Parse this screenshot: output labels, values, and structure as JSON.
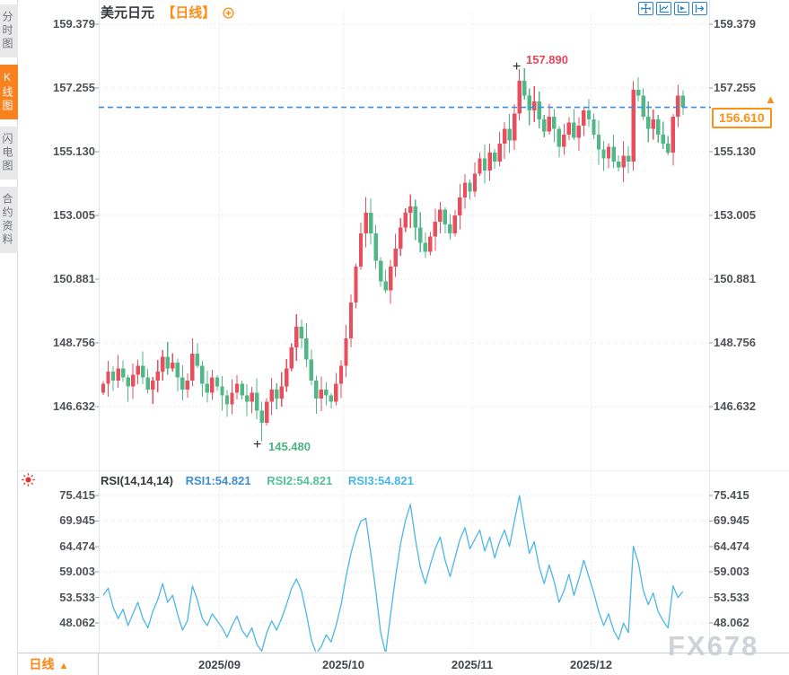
{
  "header": {
    "symbol": "美元日元",
    "period_tag": "【日线】"
  },
  "sidebar": {
    "items": [
      {
        "label": "分时图",
        "active": false
      },
      {
        "label": "K线图",
        "active": true
      },
      {
        "label": "闪电图",
        "active": false
      },
      {
        "label": "合约资料",
        "active": false
      }
    ]
  },
  "toolbar": {
    "icons": [
      {
        "name": "crosshair-icon"
      },
      {
        "name": "axis-line-chart-icon"
      },
      {
        "name": "axis-play-icon"
      },
      {
        "name": "pan-right-icon"
      }
    ]
  },
  "rsi_header": {
    "title": "RSI(14,14,14)",
    "series": [
      {
        "label": "RSI1:54.821",
        "color": "#3e8ed0"
      },
      {
        "label": "RSI2:54.821",
        "color": "#53c198"
      },
      {
        "label": "RSI3:54.821",
        "color": "#46b7e5"
      }
    ]
  },
  "bottom_bar": {
    "period_label": "日线",
    "arrow": "▲"
  },
  "watermark": "FX678",
  "colors": {
    "accent_orange": "#ff8c12",
    "up_red": "#ea4e5c",
    "down_green": "#50b787",
    "last_price_line": "#3b8de0",
    "rsi_line": "#4cb6e6",
    "grid": "#dcdcdc",
    "sidebar_active_bg": "#f8821d"
  },
  "chart_data": [
    {
      "type": "candlestick",
      "title": "美元日元【日线】",
      "period": "日线",
      "up_color": "#ea4e5c",
      "down_color": "#50b787",
      "y_ticks": [
        "159.379",
        "157.255",
        "155.130",
        "153.005",
        "150.881",
        "148.756",
        "146.632"
      ],
      "ylim": [
        145.3,
        159.8
      ],
      "x_ticks": [
        {
          "label": "2025/09",
          "index": 24
        },
        {
          "label": "2025/10",
          "index": 49
        },
        {
          "label": "2025/11",
          "index": 75
        },
        {
          "label": "2025/12",
          "index": 99
        }
      ],
      "first_open": 147.1,
      "closes": [
        147.4,
        147.8,
        147.5,
        147.9,
        147.6,
        147.3,
        147.7,
        148.0,
        147.6,
        147.2,
        147.5,
        147.8,
        148.3,
        147.9,
        148.1,
        147.6,
        147.2,
        147.5,
        148.4,
        148.0,
        147.4,
        147.1,
        147.6,
        147.3,
        147.0,
        146.7,
        147.1,
        147.4,
        147.0,
        146.8,
        147.1,
        146.5,
        146.1,
        146.8,
        147.2,
        146.9,
        147.3,
        147.9,
        148.6,
        149.3,
        148.9,
        148.2,
        147.5,
        146.9,
        147.2,
        147.0,
        146.8,
        147.4,
        148.0,
        148.9,
        150.1,
        151.3,
        152.4,
        153.1,
        152.4,
        151.5,
        150.8,
        150.5,
        151.3,
        151.9,
        152.6,
        153.1,
        153.3,
        152.6,
        152.1,
        151.8,
        152.3,
        152.8,
        153.2,
        152.7,
        152.4,
        153.0,
        153.6,
        154.1,
        153.8,
        154.4,
        154.9,
        154.5,
        155.1,
        154.8,
        155.4,
        155.9,
        155.5,
        156.4,
        157.5,
        157.0,
        156.5,
        156.8,
        156.2,
        155.8,
        156.3,
        155.9,
        155.3,
        155.7,
        156.1,
        155.6,
        156.0,
        156.5,
        156.2,
        155.7,
        155.2,
        154.9,
        155.3,
        154.8,
        154.6,
        155.0,
        154.8,
        157.2,
        157.0,
        156.3,
        155.9,
        156.2,
        155.7,
        155.4,
        155.1,
        156.3,
        157.0,
        156.61
      ],
      "wick_overrides": {
        "32": {
          "low": 145.48
        },
        "53": {
          "high": 153.62
        },
        "84": {
          "high": 157.89
        },
        "107": {
          "high": 157.48
        }
      },
      "key_points": {
        "high": {
          "index": 84,
          "price": 157.89,
          "label": "157.890"
        },
        "low": {
          "index": 32,
          "price": 145.48,
          "label": "145.480"
        }
      },
      "last_price": {
        "value": 156.61,
        "label": "156.610"
      }
    },
    {
      "type": "line",
      "name": "RSI(14,14,14)",
      "color": "#4cb6e6",
      "y_ticks": [
        "75.415",
        "69.945",
        "64.474",
        "59.003",
        "53.533",
        "48.062"
      ],
      "values": [
        54.0,
        55.5,
        51.5,
        49.0,
        51.0,
        47.5,
        50.0,
        52.5,
        49.0,
        47.0,
        50.5,
        53.0,
        56.5,
        52.5,
        54.0,
        50.0,
        46.5,
        48.5,
        56.0,
        53.0,
        49.0,
        47.5,
        50.0,
        48.5,
        47.0,
        45.0,
        47.5,
        49.5,
        46.5,
        45.0,
        47.0,
        43.5,
        42.0,
        46.0,
        48.5,
        46.5,
        49.0,
        52.0,
        55.5,
        57.5,
        55.0,
        50.0,
        44.5,
        41.5,
        43.0,
        45.5,
        44.0,
        47.5,
        52.0,
        58.0,
        63.0,
        67.0,
        69.9,
        70.5,
        63.0,
        55.0,
        46.0,
        41.5,
        50.0,
        58.0,
        65.0,
        70.0,
        73.5,
        66.0,
        60.0,
        56.5,
        60.5,
        64.0,
        66.5,
        61.5,
        58.0,
        62.0,
        66.0,
        68.5,
        64.0,
        66.0,
        68.0,
        63.5,
        66.5,
        62.0,
        65.5,
        68.0,
        64.5,
        70.0,
        75.4,
        69.0,
        63.0,
        65.5,
        60.0,
        56.5,
        60.5,
        57.0,
        52.5,
        55.0,
        58.5,
        54.0,
        57.5,
        61.5,
        58.0,
        54.5,
        50.5,
        47.5,
        50.0,
        46.5,
        44.5,
        48.0,
        46.0,
        64.5,
        61.0,
        55.0,
        52.0,
        54.5,
        50.5,
        48.5,
        47.0,
        56.0,
        53.5,
        54.8
      ],
      "last_values": {
        "rsi1": 54.821,
        "rsi2": 54.821,
        "rsi3": 54.821
      }
    }
  ]
}
